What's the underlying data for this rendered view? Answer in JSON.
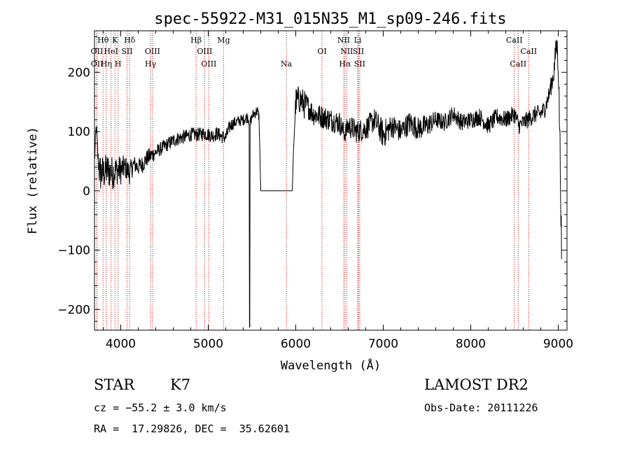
{
  "chart_data": {
    "type": "line",
    "title": "spec-55922-M31_015N35_M1_sp09-246.fits",
    "xlabel": "Wavelength (Å)",
    "ylabel": "Flux (relative)",
    "xlim": [
      3700,
      9100
    ],
    "ylim": [
      -235,
      270
    ],
    "xticks": [
      4000,
      5000,
      6000,
      7000,
      8000,
      9000
    ],
    "yticks": [
      -200,
      -100,
      0,
      100,
      200
    ],
    "grid": false,
    "series_color": "#000000",
    "line_color": "#cc0000",
    "spectrum_anchors": {
      "x": [
        3700,
        3720,
        3740,
        3760,
        3800,
        3850,
        3900,
        3950,
        4000,
        4050,
        4100,
        4150,
        4200,
        4250,
        4300,
        4350,
        4400,
        4450,
        4500,
        4550,
        4600,
        4650,
        4700,
        4750,
        4800,
        4850,
        4900,
        4950,
        5000,
        5050,
        5100,
        5150,
        5200,
        5250,
        5300,
        5350,
        5400,
        5450,
        5480,
        5500,
        5520,
        5560,
        5580,
        5600,
        5700,
        5800,
        5900,
        5960,
        5980,
        6000,
        6050,
        6100,
        6150,
        6200,
        6300,
        6400,
        6500,
        6560,
        6600,
        6700,
        6800,
        6900,
        7000,
        7100,
        7200,
        7300,
        7400,
        7500,
        7600,
        7700,
        7800,
        7900,
        8000,
        8100,
        8200,
        8300,
        8400,
        8500,
        8550,
        8600,
        8650,
        8700,
        8750,
        8800,
        8850,
        8900,
        8950,
        8980,
        9000,
        9020,
        9040
      ],
      "y": [
        50,
        110,
        55,
        30,
        30,
        35,
        30,
        35,
        35,
        40,
        30,
        45,
        40,
        45,
        55,
        60,
        65,
        70,
        75,
        80,
        85,
        88,
        90,
        92,
        95,
        95,
        95,
        97,
        95,
        93,
        97,
        92,
        90,
        110,
        115,
        118,
        120,
        125,
        115,
        125,
        130,
        135,
        125,
        0,
        0,
        0,
        0,
        0,
        90,
        150,
        155,
        145,
        140,
        130,
        125,
        120,
        115,
        95,
        110,
        100,
        105,
        120,
        95,
        110,
        100,
        115,
        105,
        110,
        120,
        115,
        130,
        115,
        120,
        125,
        110,
        125,
        120,
        130,
        110,
        115,
        120,
        125,
        130,
        130,
        140,
        165,
        200,
        250,
        220,
        80,
        -130
      ],
      "noise": [
        15,
        15,
        15,
        35,
        30,
        30,
        30,
        25,
        25,
        20,
        20,
        15,
        15,
        15,
        15,
        15,
        12,
        12,
        12,
        12,
        12,
        12,
        12,
        12,
        12,
        12,
        12,
        12,
        12,
        12,
        12,
        12,
        12,
        12,
        10,
        10,
        10,
        10,
        10,
        10,
        10,
        10,
        10,
        0,
        0,
        0,
        0,
        0,
        10,
        25,
        25,
        25,
        20,
        20,
        20,
        20,
        20,
        15,
        20,
        20,
        20,
        20,
        25,
        20,
        20,
        20,
        20,
        20,
        15,
        15,
        15,
        15,
        15,
        15,
        15,
        15,
        15,
        15,
        15,
        15,
        15,
        15,
        15,
        15,
        15,
        15,
        20,
        20,
        30,
        30,
        30
      ]
    },
    "emission_lines": [
      {
        "label": "Hθ",
        "x": 3798,
        "row": 0
      },
      {
        "label": "OII",
        "x": 3727,
        "row": 1
      },
      {
        "label": "OII",
        "x": 3729,
        "row": 2
      },
      {
        "label": "K",
        "x": 3934,
        "row": 0
      },
      {
        "label": "HeI",
        "x": 3889,
        "row": 1
      },
      {
        "label": "Hη",
        "x": 3835,
        "row": 2
      },
      {
        "label": "Hδ",
        "x": 4102,
        "row": 0
      },
      {
        "label": "SII",
        "x": 4072,
        "row": 1
      },
      {
        "label": "H",
        "x": 3969,
        "row": 2
      },
      {
        "label": "OIII",
        "x": 4363,
        "row": 1
      },
      {
        "label": "Hγ",
        "x": 4341,
        "row": 2
      },
      {
        "label": "Hβ",
        "x": 4861,
        "row": 0
      },
      {
        "label": "OIII",
        "x": 4959,
        "row": 1
      },
      {
        "label": "OIII",
        "x": 5007,
        "row": 2
      },
      {
        "label": "Mg",
        "x": 5175,
        "row": 0
      },
      {
        "label": "Na",
        "x": 5893,
        "row": 2
      },
      {
        "label": "OI",
        "x": 6300,
        "row": 1
      },
      {
        "label": "NII",
        "x": 6548,
        "row": 0
      },
      {
        "label": "NII",
        "x": 6583,
        "row": 1
      },
      {
        "label": "Hα",
        "x": 6563,
        "row": 2
      },
      {
        "label": "Li",
        "x": 6708,
        "row": 0
      },
      {
        "label": "SII",
        "x": 6716,
        "row": 1
      },
      {
        "label": "SII",
        "x": 6731,
        "row": 2
      },
      {
        "label": "CaII",
        "x": 8498,
        "row": 0
      },
      {
        "label": "CaII",
        "x": 8662,
        "row": 1
      },
      {
        "label": "CaII",
        "x": 8542,
        "row": 2
      }
    ]
  },
  "info": {
    "class": "STAR",
    "subclass": "K7",
    "survey": "LAMOST DR2",
    "cz": "cz = −55.2 ± 3.0 km/s",
    "obs_date": "Obs-Date: 20111226",
    "coords": "RA =  17.29826, DEC =  35.62601"
  }
}
